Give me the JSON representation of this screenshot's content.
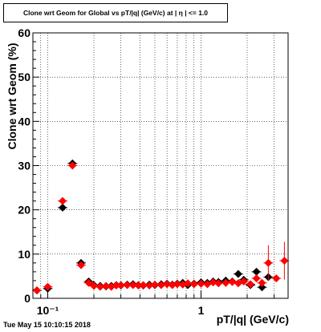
{
  "chart_data": {
    "type": "scatter",
    "title": "Clone wrt Geom for Global vs pT/|q| (GeV/c) at | η | <= 1.0",
    "xlabel": "pT/|q| (GeV/c)",
    "ylabel": "Clone wrt Geom (%)",
    "x_scale": "log",
    "xlim": [
      0.08,
      3.7
    ],
    "ylim": [
      0,
      60
    ],
    "y_ticks": [
      "0",
      "10",
      "20",
      "30",
      "40",
      "50",
      "60"
    ],
    "x_ticks": [
      "10⁻¹",
      "1"
    ],
    "grid": true,
    "colors": {
      "series_black": "#000000",
      "series_red": "#ff0000"
    },
    "series": [
      {
        "color": "black",
        "x": [
          0.085,
          0.1,
          0.125,
          0.145,
          0.165,
          0.185,
          0.2,
          0.22,
          0.24,
          0.26,
          0.28,
          0.3,
          0.33,
          0.36,
          0.39,
          0.42,
          0.46,
          0.5,
          0.55,
          0.6,
          0.65,
          0.7,
          0.76,
          0.82,
          0.9,
          1.0,
          1.1,
          1.2,
          1.3,
          1.45,
          1.6,
          1.75,
          1.9,
          2.1,
          2.3,
          2.5,
          2.75
        ],
        "y": [
          1.8,
          2.2,
          20.5,
          30.5,
          8.0,
          3.8,
          3.0,
          2.8,
          2.7,
          2.8,
          3.0,
          2.9,
          3.1,
          3.2,
          3.0,
          2.9,
          3.1,
          3.0,
          3.2,
          3.3,
          3.1,
          3.3,
          3.5,
          3.0,
          3.3,
          3.6,
          3.5,
          3.8,
          3.7,
          4.0,
          3.8,
          5.5,
          4.2,
          3.0,
          6.0,
          2.5,
          4.8
        ]
      },
      {
        "color": "red",
        "x": [
          0.085,
          0.1,
          0.125,
          0.145,
          0.165,
          0.185,
          0.2,
          0.22,
          0.24,
          0.26,
          0.28,
          0.3,
          0.33,
          0.36,
          0.39,
          0.42,
          0.46,
          0.5,
          0.55,
          0.6,
          0.65,
          0.7,
          0.76,
          0.82,
          0.9,
          1.0,
          1.1,
          1.2,
          1.3,
          1.45,
          1.6,
          1.75,
          1.9,
          2.1,
          2.3,
          2.5,
          2.75,
          3.1,
          3.5
        ],
        "y": [
          1.8,
          2.6,
          22.0,
          30.0,
          7.5,
          3.5,
          2.8,
          2.6,
          2.8,
          2.6,
          2.9,
          3.0,
          3.0,
          3.0,
          2.9,
          3.0,
          2.9,
          3.1,
          3.0,
          3.2,
          3.0,
          3.2,
          3.1,
          3.4,
          3.2,
          3.3,
          3.2,
          3.6,
          3.4,
          3.5,
          3.7,
          3.4,
          3.8,
          3.2,
          4.5,
          3.5,
          8.0,
          4.5,
          8.5
        ]
      }
    ]
  },
  "footer": {
    "timestamp": "Tue May 15 10:10:15 2018"
  }
}
